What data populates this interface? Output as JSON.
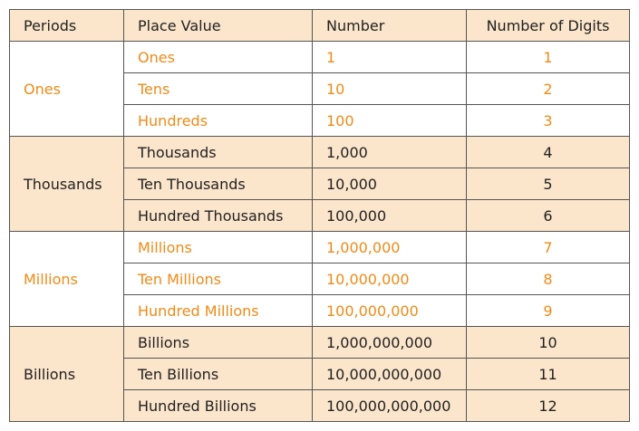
{
  "header": {
    "periods": "Periods",
    "place_value": "Place Value",
    "number": "Number",
    "digits": "Number of Digits"
  },
  "colors": {
    "accent_orange": "#f08a16",
    "band_peach": "#fbe5cb",
    "text_dark": "#222222",
    "border": "#555555"
  },
  "groups": [
    {
      "period": "Ones",
      "rows": [
        {
          "place": "Ones",
          "number": "1",
          "digits": "1"
        },
        {
          "place": "Tens",
          "number": "10",
          "digits": "2"
        },
        {
          "place": "Hundreds",
          "number": "100",
          "digits": "3"
        }
      ]
    },
    {
      "period": "Thousands",
      "rows": [
        {
          "place": "Thousands",
          "number": "1,000",
          "digits": "4"
        },
        {
          "place": "Ten Thousands",
          "number": "10,000",
          "digits": "5"
        },
        {
          "place": "Hundred Thousands",
          "number": "100,000",
          "digits": "6"
        }
      ]
    },
    {
      "period": "Millions",
      "rows": [
        {
          "place": "Millions",
          "number": "1,000,000",
          "digits": "7"
        },
        {
          "place": "Ten Millions",
          "number": "10,000,000",
          "digits": "8"
        },
        {
          "place": "Hundred Millions",
          "number": "100,000,000",
          "digits": "9"
        }
      ]
    },
    {
      "period": "Billions",
      "rows": [
        {
          "place": "Billions",
          "number": "1,000,000,000",
          "digits": "10"
        },
        {
          "place": "Ten Billions",
          "number": "10,000,000,000",
          "digits": "11"
        },
        {
          "place": "Hundred Billions",
          "number": "100,000,000,000",
          "digits": "12"
        }
      ]
    }
  ]
}
